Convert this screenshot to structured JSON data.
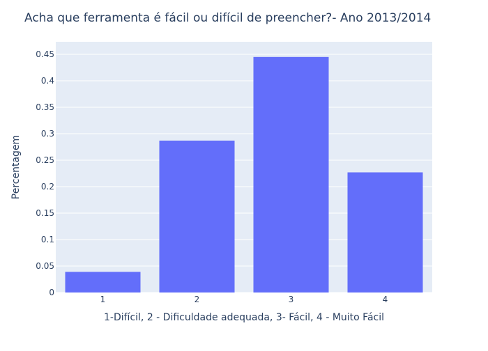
{
  "chart_data": {
    "type": "bar",
    "title": "Acha que ferramenta é fácil ou difícil de preencher?- Ano 2013/2014",
    "xlabel": "1-Difícil, 2 - Dificuldade adequada, 3- Fácil, 4 - Muito Fácil",
    "ylabel": "Percentagem",
    "categories": [
      "1",
      "2",
      "3",
      "4"
    ],
    "values": [
      0.039,
      0.287,
      0.445,
      0.227
    ],
    "ylim": [
      0,
      0.4737
    ],
    "yticks": [
      "0",
      "0.05",
      "0.1",
      "0.15",
      "0.2",
      "0.25",
      "0.3",
      "0.35",
      "0.4",
      "0.45"
    ],
    "grid": true,
    "colors": {
      "bar": "#636efa",
      "plot_bg": "#e5ecf6",
      "grid": "#ffffff",
      "text": "#2a3f5f"
    }
  }
}
